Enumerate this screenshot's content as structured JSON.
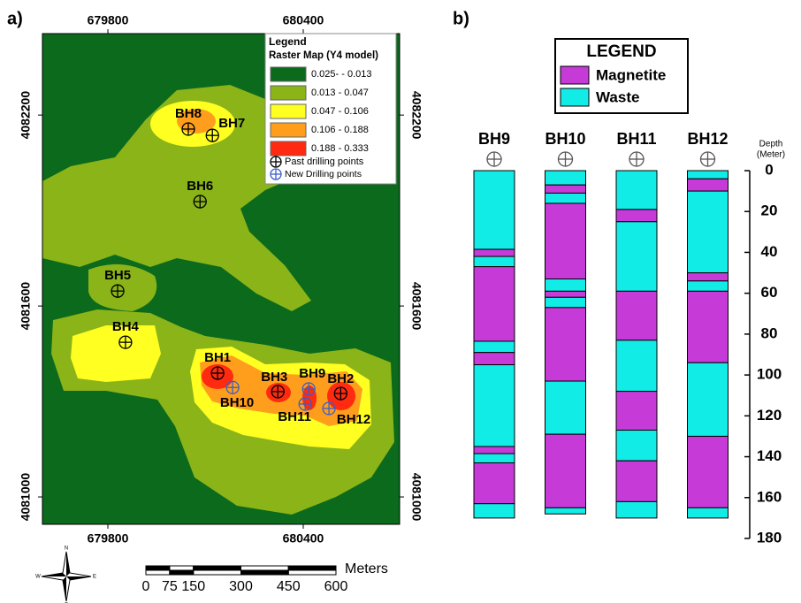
{
  "panel_a": {
    "label": "a)",
    "xlim": [
      679599,
      680696
    ],
    "ylim": [
      4080914,
      4082456
    ],
    "xticks": [
      679800,
      680400
    ],
    "yticks": [
      4081000,
      4081600,
      4082200
    ],
    "legend": {
      "title": "Legend",
      "subtitle": "Raster Map (Y4 model)",
      "classes": [
        {
          "label": "0.025- - 0.013",
          "color": "#0b6a1c"
        },
        {
          "label": "0.013 - 0.047",
          "color": "#8ab418"
        },
        {
          "label": "0.047 - 0.106",
          "color": "#ffff22"
        },
        {
          "label": "0.106 - 0.188",
          "color": "#ff9e1c"
        },
        {
          "label": "0.188 - 0.333",
          "color": "#ff2a10"
        }
      ],
      "past": {
        "label": "Past drilling points",
        "color": "#000000"
      },
      "new": {
        "label": "New Drilling points",
        "color": "#3a5fc8"
      }
    },
    "boreholes": [
      {
        "name": "BH8",
        "kind": "past",
        "x": 680047,
        "y": 4082156
      },
      {
        "name": "BH7",
        "kind": "past",
        "x": 680121,
        "y": 4082136
      },
      {
        "name": "BH6",
        "kind": "past",
        "x": 680083,
        "y": 4081928
      },
      {
        "name": "BH5",
        "kind": "past",
        "x": 679830,
        "y": 4081647
      },
      {
        "name": "BH4",
        "kind": "past",
        "x": 679854,
        "y": 4081486
      },
      {
        "name": "BH1",
        "kind": "past",
        "x": 680137,
        "y": 4081389
      },
      {
        "name": "BH3",
        "kind": "past",
        "x": 680322,
        "y": 4081331
      },
      {
        "name": "BH2",
        "kind": "past",
        "x": 680515,
        "y": 4081325
      },
      {
        "name": "BH10",
        "kind": "new",
        "x": 680183,
        "y": 4081344
      },
      {
        "name": "BH9",
        "kind": "new",
        "x": 680417,
        "y": 4081339
      },
      {
        "name": "BH11",
        "kind": "new",
        "x": 680406,
        "y": 4081292
      },
      {
        "name": "BH12",
        "kind": "new",
        "x": 680479,
        "y": 4081278
      }
    ],
    "scale_bar": {
      "ticks": [
        0,
        75,
        150,
        300,
        450,
        600
      ],
      "unit": "Meters"
    },
    "north_arrow": [
      "N",
      "E",
      "S",
      "W"
    ]
  },
  "panel_b": {
    "label": "b)",
    "legend": {
      "title": "LEGEND",
      "items": [
        {
          "name": "Magnetite",
          "color": "#c63ad8"
        },
        {
          "name": "Waste",
          "color": "#12ece6"
        }
      ]
    },
    "axis_title": [
      "Depth",
      "(Meter)"
    ],
    "ylim": [
      0,
      180
    ],
    "yticks": [
      0,
      20,
      40,
      60,
      80,
      100,
      120,
      140,
      160,
      180
    ],
    "boreholes": [
      {
        "name": "BH9",
        "intervals": [
          {
            "from": 0,
            "to": 38.5,
            "lith": "Waste"
          },
          {
            "from": 38.5,
            "to": 42,
            "lith": "Magnetite"
          },
          {
            "from": 42,
            "to": 47,
            "lith": "Waste"
          },
          {
            "from": 47,
            "to": 83.5,
            "lith": "Magnetite"
          },
          {
            "from": 83.5,
            "to": 89,
            "lith": "Waste"
          },
          {
            "from": 89,
            "to": 95,
            "lith": "Magnetite"
          },
          {
            "from": 95,
            "to": 135,
            "lith": "Waste"
          },
          {
            "from": 135,
            "to": 138.5,
            "lith": "Magnetite"
          },
          {
            "from": 138.5,
            "to": 143,
            "lith": "Waste"
          },
          {
            "from": 143,
            "to": 163,
            "lith": "Magnetite"
          },
          {
            "from": 163,
            "to": 170,
            "lith": "Waste"
          }
        ]
      },
      {
        "name": "BH10",
        "intervals": [
          {
            "from": 0,
            "to": 7,
            "lith": "Waste"
          },
          {
            "from": 7,
            "to": 11,
            "lith": "Magnetite"
          },
          {
            "from": 11,
            "to": 16,
            "lith": "Waste"
          },
          {
            "from": 16,
            "to": 53,
            "lith": "Magnetite"
          },
          {
            "from": 53,
            "to": 59,
            "lith": "Waste"
          },
          {
            "from": 59,
            "to": 62,
            "lith": "Magnetite"
          },
          {
            "from": 62,
            "to": 67,
            "lith": "Waste"
          },
          {
            "from": 67,
            "to": 103,
            "lith": "Magnetite"
          },
          {
            "from": 103,
            "to": 129,
            "lith": "Waste"
          },
          {
            "from": 129,
            "to": 165,
            "lith": "Magnetite"
          },
          {
            "from": 165,
            "to": 168,
            "lith": "Waste"
          }
        ]
      },
      {
        "name": "BH11",
        "intervals": [
          {
            "from": 0,
            "to": 19,
            "lith": "Waste"
          },
          {
            "from": 19,
            "to": 25,
            "lith": "Magnetite"
          },
          {
            "from": 25,
            "to": 59,
            "lith": "Waste"
          },
          {
            "from": 59,
            "to": 83,
            "lith": "Magnetite"
          },
          {
            "from": 83,
            "to": 108,
            "lith": "Waste"
          },
          {
            "from": 108,
            "to": 127,
            "lith": "Magnetite"
          },
          {
            "from": 127,
            "to": 142,
            "lith": "Waste"
          },
          {
            "from": 142,
            "to": 162,
            "lith": "Magnetite"
          },
          {
            "from": 162,
            "to": 170,
            "lith": "Waste"
          }
        ]
      },
      {
        "name": "BH12",
        "intervals": [
          {
            "from": 0,
            "to": 4,
            "lith": "Waste"
          },
          {
            "from": 4,
            "to": 10,
            "lith": "Magnetite"
          },
          {
            "from": 10,
            "to": 50,
            "lith": "Waste"
          },
          {
            "from": 50,
            "to": 54,
            "lith": "Magnetite"
          },
          {
            "from": 54,
            "to": 59,
            "lith": "Waste"
          },
          {
            "from": 59,
            "to": 94,
            "lith": "Magnetite"
          },
          {
            "from": 94,
            "to": 130,
            "lith": "Waste"
          },
          {
            "from": 130,
            "to": 165,
            "lith": "Magnetite"
          },
          {
            "from": 165,
            "to": 170,
            "lith": "Waste"
          }
        ]
      }
    ]
  }
}
